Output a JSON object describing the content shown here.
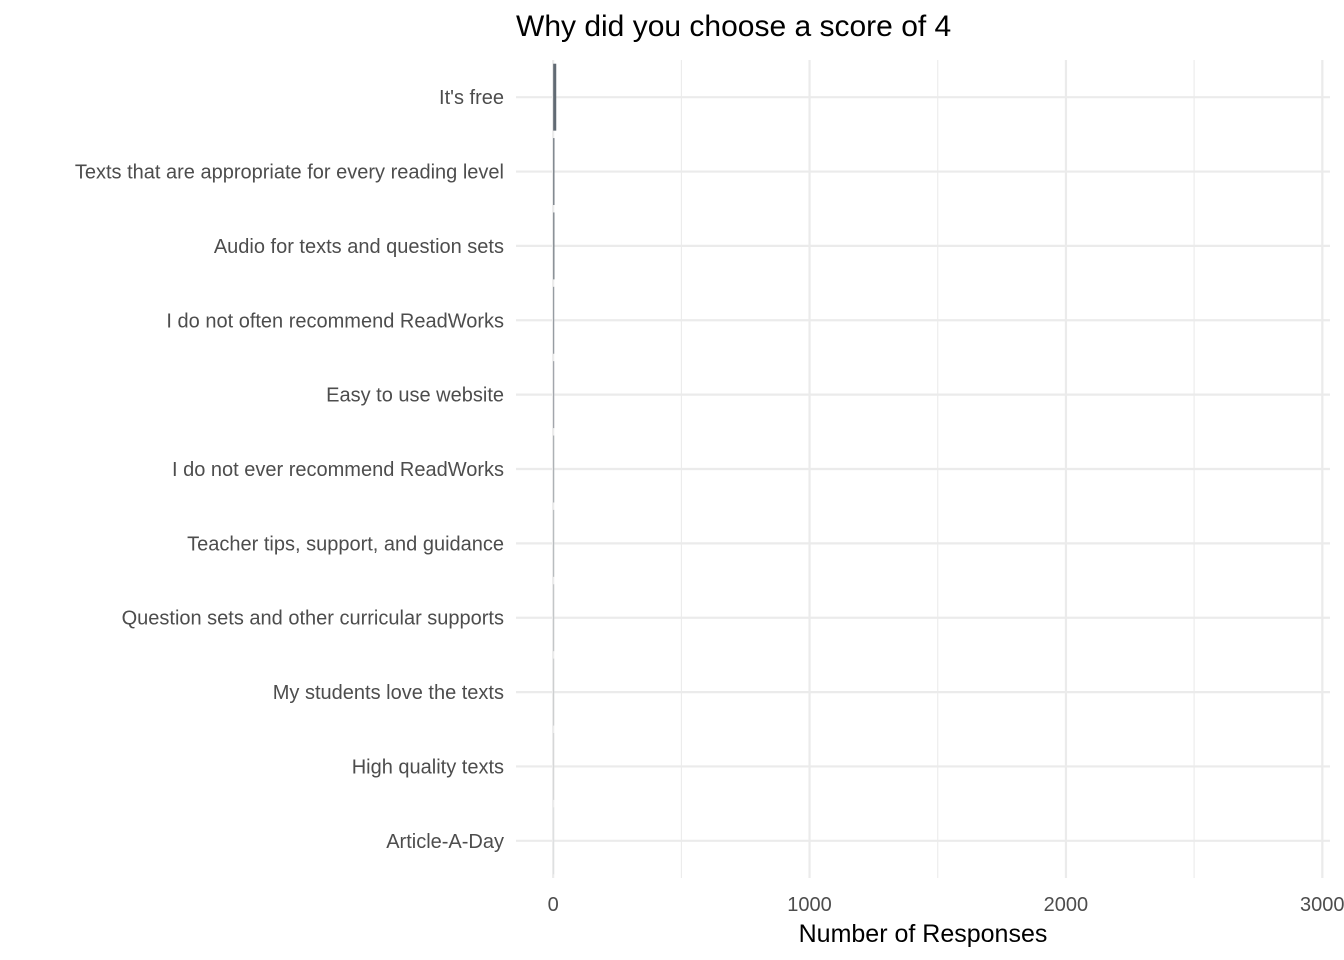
{
  "chart_data": {
    "type": "bar",
    "orientation": "horizontal",
    "title": "Why did you choose a score of 4",
    "xlabel": "Number of Responses",
    "ylabel": "",
    "xlim": [
      -145,
      3030
    ],
    "x_ticks": [
      0,
      1000,
      2000,
      3000
    ],
    "x_minor_ticks": [
      500,
      1500,
      2500
    ],
    "grid": true,
    "legend": "none",
    "categories": [
      "It's free",
      "Texts that are appropriate for every reading level",
      "Audio for texts and question sets",
      "I do not often recommend ReadWorks",
      "Easy to use website",
      "I do not ever recommend ReadWorks",
      "Teacher tips, support, and guidance",
      "Question sets and other curricular supports",
      "My students love the texts",
      "High quality texts",
      "Article-A-Day"
    ],
    "values": [
      12,
      5,
      5,
      4,
      4,
      4,
      3,
      3,
      3,
      2,
      2
    ],
    "bar_colors": [
      "#616a73",
      "#6d757e",
      "#787f87",
      "#858c93",
      "#92989e",
      "#a0a5aa",
      "#aeb2b6",
      "#bbbec1",
      "#c7c9cb",
      "#d2d3d5",
      "#dcdddf"
    ]
  }
}
